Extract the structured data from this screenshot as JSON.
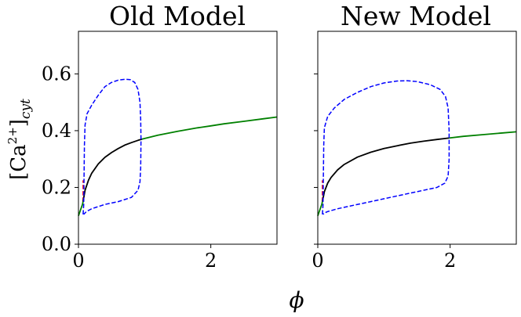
{
  "figure": {
    "shared_xlabel": "ϕ",
    "shared_ylabel": {
      "prefix": "[Ca",
      "superscript": "2+",
      "suffix": "]",
      "subscript": "cyt"
    }
  },
  "chart_data": [
    {
      "type": "line",
      "title": "Old Model",
      "xlim": [
        0,
        3
      ],
      "ylim": [
        0,
        0.75
      ],
      "xticks": [
        0,
        2
      ],
      "yticks": [
        0.0,
        0.2,
        0.4,
        0.6
      ],
      "ytick_labels": [
        "0.0",
        "0.2",
        "0.4",
        "0.6"
      ],
      "xtick_labels": [
        "0",
        "2"
      ],
      "grid": false,
      "series": [
        {
          "style": "solid",
          "color": "#008000",
          "points": [
            [
              0.0,
              0.1
            ],
            [
              0.03,
              0.12
            ],
            [
              0.06,
              0.14
            ],
            [
              0.07,
              0.15
            ]
          ]
        },
        {
          "style": "dashed",
          "color": "#ff0000",
          "points": [
            [
              0.07,
              0.15
            ],
            [
              0.07,
              0.19
            ],
            [
              0.07,
              0.225
            ]
          ]
        },
        {
          "style": "solid",
          "color": "#000000",
          "points": [
            [
              0.07,
              0.15
            ],
            [
              0.1,
              0.19
            ],
            [
              0.15,
              0.225
            ],
            [
              0.2,
              0.25
            ],
            [
              0.3,
              0.283
            ],
            [
              0.4,
              0.306
            ],
            [
              0.5,
              0.323
            ],
            [
              0.6,
              0.337
            ],
            [
              0.7,
              0.349
            ],
            [
              0.8,
              0.358
            ],
            [
              0.9,
              0.366
            ],
            [
              0.96,
              0.37
            ]
          ]
        },
        {
          "style": "solid",
          "color": "#008000",
          "points": [
            [
              0.96,
              0.37
            ],
            [
              1.2,
              0.384
            ],
            [
              1.5,
              0.398
            ],
            [
              1.8,
              0.41
            ],
            [
              2.0,
              0.417
            ],
            [
              2.2,
              0.424
            ],
            [
              2.5,
              0.433
            ],
            [
              2.8,
              0.442
            ],
            [
              3.0,
              0.448
            ]
          ]
        },
        {
          "style": "dashed",
          "color": "#0000ff",
          "points": [
            [
              0.07,
              0.105
            ],
            [
              0.08,
              0.14
            ],
            [
              0.09,
              0.35
            ],
            [
              0.1,
              0.42
            ],
            [
              0.13,
              0.46
            ],
            [
              0.2,
              0.49
            ],
            [
              0.3,
              0.525
            ],
            [
              0.4,
              0.555
            ],
            [
              0.5,
              0.57
            ],
            [
              0.6,
              0.578
            ],
            [
              0.7,
              0.581
            ],
            [
              0.78,
              0.58
            ],
            [
              0.85,
              0.57
            ],
            [
              0.9,
              0.545
            ],
            [
              0.93,
              0.5
            ],
            [
              0.94,
              0.44
            ],
            [
              0.945,
              0.37
            ],
            [
              0.94,
              0.27
            ],
            [
              0.93,
              0.22
            ],
            [
              0.9,
              0.19
            ],
            [
              0.8,
              0.165
            ],
            [
              0.6,
              0.15
            ],
            [
              0.4,
              0.14
            ],
            [
              0.2,
              0.125
            ],
            [
              0.12,
              0.115
            ],
            [
              0.1,
              0.11
            ],
            [
              0.08,
              0.105
            ]
          ]
        }
      ]
    },
    {
      "type": "line",
      "title": "New Model",
      "xlim": [
        0,
        3
      ],
      "ylim": [
        0,
        0.75
      ],
      "xticks": [
        0,
        2
      ],
      "yticks": [
        0.0,
        0.2,
        0.4,
        0.6
      ],
      "ytick_labels": [
        "",
        "",
        "",
        ""
      ],
      "xtick_labels": [
        "0",
        "2"
      ],
      "grid": false,
      "series": [
        {
          "style": "solid",
          "color": "#008000",
          "points": [
            [
              0.0,
              0.1
            ],
            [
              0.03,
              0.12
            ],
            [
              0.06,
              0.14
            ],
            [
              0.07,
              0.15
            ]
          ]
        },
        {
          "style": "dashed",
          "color": "#ff0000",
          "points": [
            [
              0.07,
              0.15
            ],
            [
              0.07,
              0.19
            ],
            [
              0.07,
              0.225
            ]
          ]
        },
        {
          "style": "solid",
          "color": "#000000",
          "points": [
            [
              0.07,
              0.15
            ],
            [
              0.1,
              0.185
            ],
            [
              0.15,
              0.215
            ],
            [
              0.2,
              0.235
            ],
            [
              0.3,
              0.262
            ],
            [
              0.4,
              0.281
            ],
            [
              0.6,
              0.307
            ],
            [
              0.8,
              0.324
            ],
            [
              1.0,
              0.337
            ],
            [
              1.2,
              0.347
            ],
            [
              1.4,
              0.356
            ],
            [
              1.6,
              0.363
            ],
            [
              1.8,
              0.369
            ],
            [
              1.98,
              0.374
            ]
          ]
        },
        {
          "style": "solid",
          "color": "#008000",
          "points": [
            [
              1.98,
              0.374
            ],
            [
              2.2,
              0.38
            ],
            [
              2.5,
              0.386
            ],
            [
              2.8,
              0.392
            ],
            [
              3.0,
              0.396
            ]
          ]
        },
        {
          "style": "dashed",
          "color": "#0000ff",
          "points": [
            [
              0.07,
              0.105
            ],
            [
              0.08,
              0.14
            ],
            [
              0.09,
              0.35
            ],
            [
              0.1,
              0.41
            ],
            [
              0.15,
              0.45
            ],
            [
              0.25,
              0.48
            ],
            [
              0.4,
              0.51
            ],
            [
              0.6,
              0.535
            ],
            [
              0.8,
              0.555
            ],
            [
              1.0,
              0.568
            ],
            [
              1.2,
              0.575
            ],
            [
              1.35,
              0.576
            ],
            [
              1.5,
              0.573
            ],
            [
              1.7,
              0.562
            ],
            [
              1.85,
              0.545
            ],
            [
              1.93,
              0.52
            ],
            [
              1.97,
              0.48
            ],
            [
              1.985,
              0.4
            ],
            [
              1.985,
              0.3
            ],
            [
              1.97,
              0.24
            ],
            [
              1.92,
              0.215
            ],
            [
              1.8,
              0.2
            ],
            [
              1.5,
              0.185
            ],
            [
              1.2,
              0.17
            ],
            [
              0.8,
              0.15
            ],
            [
              0.5,
              0.135
            ],
            [
              0.3,
              0.125
            ],
            [
              0.15,
              0.115
            ],
            [
              0.1,
              0.11
            ],
            [
              0.08,
              0.105
            ]
          ]
        }
      ]
    }
  ]
}
